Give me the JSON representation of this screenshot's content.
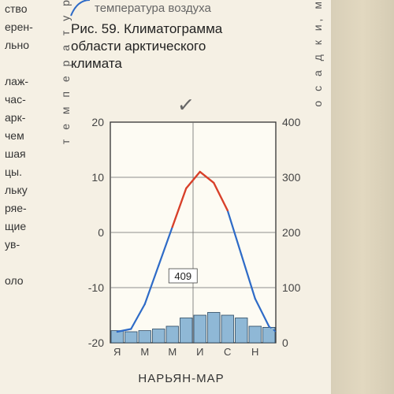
{
  "top_fragment": "температура воздуха",
  "caption_line1": "Рис. 59. Климатограмма",
  "caption_line2": "области арктического",
  "caption_line3": "климата",
  "left_words": [
    "ство",
    "ерен-",
    "льно",
    "",
    "лаж-",
    "час-",
    "арк-",
    "чем",
    "шая",
    "цы.",
    "льку",
    "ряе-",
    "щие",
    "ув-",
    "",
    "оло"
  ],
  "checkmark": "✓",
  "chart": {
    "type": "climatogram",
    "plot_bg": "#fdfbf3",
    "grid_color": "#6b6b6b",
    "axis_color": "#333333",
    "bar_fill": "#8fb8d6",
    "bar_stroke": "#2a4660",
    "line_cold": "#2e6bc7",
    "line_warm": "#d8402a",
    "text_color": "#444444",
    "y1_label": "т е м п е р а т у р а,  С°",
    "y2_label": "о с а д к и,  мм",
    "x_title": "НАРЬЯН-МАР",
    "y1_ticks": [
      -20,
      -10,
      0,
      10,
      20
    ],
    "y2_ticks": [
      0,
      100,
      200,
      300,
      400
    ],
    "y1_min": -20,
    "y1_max": 20,
    "y2_min": 0,
    "y2_max": 400,
    "months": [
      "Я",
      "",
      "М",
      "",
      "М",
      "",
      "И",
      "",
      "С",
      "",
      "Н",
      ""
    ],
    "temperature": [
      -18,
      -17.5,
      -13,
      -6,
      1,
      8,
      11,
      9,
      4,
      -4,
      -12,
      -17
    ],
    "precipitation": [
      22,
      20,
      22,
      25,
      30,
      45,
      50,
      55,
      50,
      45,
      30,
      28
    ],
    "annotation": "409",
    "title_fontsize": 15,
    "tick_fontsize": 14
  }
}
